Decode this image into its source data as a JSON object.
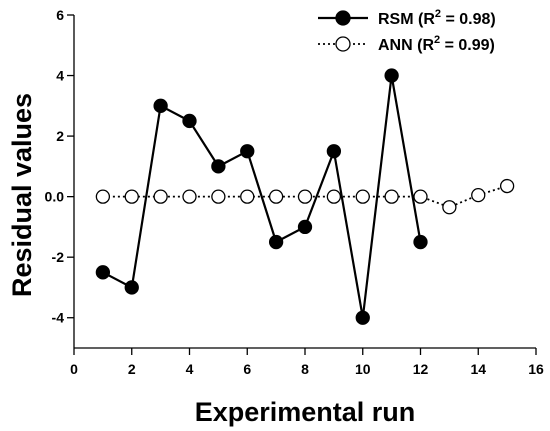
{
  "chart_data": {
    "type": "line",
    "title": "",
    "xlabel": "Experimental run",
    "ylabel": "Residual values",
    "xlim": [
      0,
      16
    ],
    "ylim": [
      -5,
      6
    ],
    "xticks": [
      0,
      2,
      4,
      6,
      8,
      10,
      12,
      14,
      16
    ],
    "yticks": [
      -4,
      -2,
      0,
      2,
      4,
      6
    ],
    "xtick_labels": [
      "0",
      "2",
      "4",
      "6",
      "8",
      "10",
      "12",
      "14",
      "16"
    ],
    "ytick_labels": [
      "-4",
      "-2",
      "0.0",
      "2",
      "4",
      "6"
    ],
    "grid": false,
    "legend_position": "top-right",
    "series": [
      {
        "name": "RSM (R² = 0.98)",
        "legend_prefix": "RSM (R",
        "legend_sup": "2",
        "legend_suffix": " = 0.98)",
        "marker": "filled-circle",
        "line_style": "solid",
        "color": "#000000",
        "x": [
          1,
          2,
          3,
          4,
          5,
          6,
          7,
          8,
          9,
          10,
          11,
          12
        ],
        "y": [
          -2.5,
          -3.0,
          3.0,
          2.5,
          1.0,
          1.5,
          -1.5,
          -1.0,
          1.5,
          -4.0,
          4.0,
          -1.5
        ]
      },
      {
        "name": "ANN (R² = 0.99)",
        "legend_prefix": "ANN (R",
        "legend_sup": "2",
        "legend_suffix": " = 0.99)",
        "marker": "open-circle",
        "line_style": "dotted",
        "color": "#000000",
        "x": [
          1,
          2,
          3,
          4,
          5,
          6,
          7,
          8,
          9,
          10,
          11,
          12,
          13,
          14,
          15
        ],
        "y": [
          0,
          0,
          0,
          0,
          0,
          0,
          0,
          0,
          0,
          0,
          0,
          0,
          -0.35,
          0.05,
          0.35
        ]
      }
    ]
  }
}
